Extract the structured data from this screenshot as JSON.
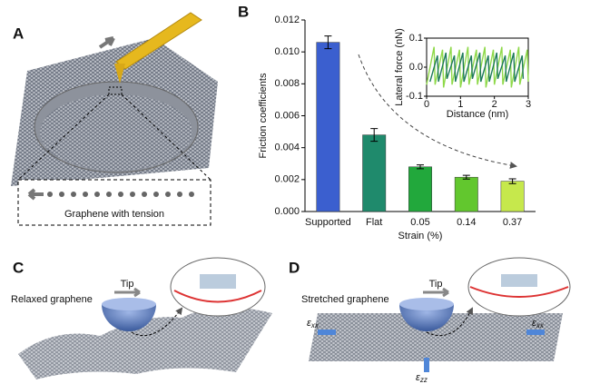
{
  "panels": {
    "A": {
      "label": "A",
      "caption": "Graphene with tension"
    },
    "C": {
      "label": "C",
      "tip": "Tip",
      "caption": "Relaxed graphene"
    },
    "D": {
      "label": "D",
      "tip": "Tip",
      "caption": "Stretched graphene",
      "strain_left": {
        "symbol": "ε",
        "sub": "xx"
      },
      "strain_right": {
        "symbol": "ε",
        "sub": "xx"
      },
      "strain_down": {
        "symbol": "ε",
        "sub": "zz"
      }
    }
  },
  "chart_data": [
    {
      "type": "bar",
      "panel_label": "B",
      "ylabel": "Friction coefficients",
      "xlabel": "Strain (%)",
      "categories": [
        "Supported",
        "Flat",
        "0.05",
        "0.14",
        "0.37"
      ],
      "values": [
        0.0106,
        0.0048,
        0.0028,
        0.00215,
        0.0019
      ],
      "errors": [
        0.0004,
        0.0004,
        0.00012,
        0.00012,
        0.00015
      ],
      "colors": [
        "#3b5fcf",
        "#1f8a6c",
        "#22a83c",
        "#62c72e",
        "#c6e84c"
      ],
      "ylim": [
        0,
        0.012
      ],
      "yticks": [
        {
          "value": 0,
          "label": "0.000"
        },
        {
          "value": 0.002,
          "label": "0.002"
        },
        {
          "value": 0.004,
          "label": "0.004"
        },
        {
          "value": 0.006,
          "label": "0.006"
        },
        {
          "value": 0.008,
          "label": "0.008"
        },
        {
          "value": 0.01,
          "label": "0.010"
        },
        {
          "value": 0.012,
          "label": "0.012"
        }
      ]
    },
    {
      "type": "line",
      "xlabel": "Distance (nm)",
      "ylabel": "Lateral force (nN)",
      "xlim": [
        0,
        3
      ],
      "xticks": [
        0,
        1,
        2,
        3
      ],
      "ylim": [
        -0.1,
        0.1
      ],
      "yticks": [
        -0.1,
        {
          "value": 0,
          "label": "0.0"
        },
        0.1
      ],
      "series": [
        {
          "color": "#8fd94a",
          "x": [
            0,
            0.22,
            0.25,
            0.47,
            0.5,
            0.72,
            0.75,
            0.97,
            1,
            1.22,
            1.25,
            1.47,
            1.5,
            1.72,
            1.75,
            1.97,
            2,
            2.22,
            2.25,
            2.47,
            2.5,
            2.72,
            2.75,
            2.97,
            3
          ],
          "values": [
            -0.06,
            0.07,
            -0.06,
            0.06,
            -0.07,
            0.07,
            -0.06,
            0.06,
            -0.07,
            0.07,
            -0.06,
            0.06,
            -0.06,
            0.07,
            -0.07,
            0.06,
            -0.06,
            0.07,
            -0.06,
            0.06,
            -0.07,
            0.07,
            -0.06,
            0.06,
            -0.05
          ]
        },
        {
          "color": "#1e7a5a",
          "x": [
            0.1,
            0.32,
            0.35,
            0.57,
            0.6,
            0.82,
            0.85,
            1.07,
            1.1,
            1.32,
            1.35,
            1.57,
            1.6,
            1.82,
            1.85,
            2.07,
            2.1,
            2.32,
            2.35,
            2.57,
            2.6,
            2.82,
            2.85
          ],
          "values": [
            -0.05,
            0.04,
            -0.05,
            0.05,
            -0.04,
            0.04,
            -0.05,
            0.05,
            -0.05,
            0.04,
            -0.04,
            0.05,
            -0.05,
            0.04,
            -0.05,
            0.05,
            -0.04,
            0.04,
            -0.05,
            0.05,
            -0.05,
            0.04,
            -0.04
          ]
        }
      ]
    }
  ]
}
